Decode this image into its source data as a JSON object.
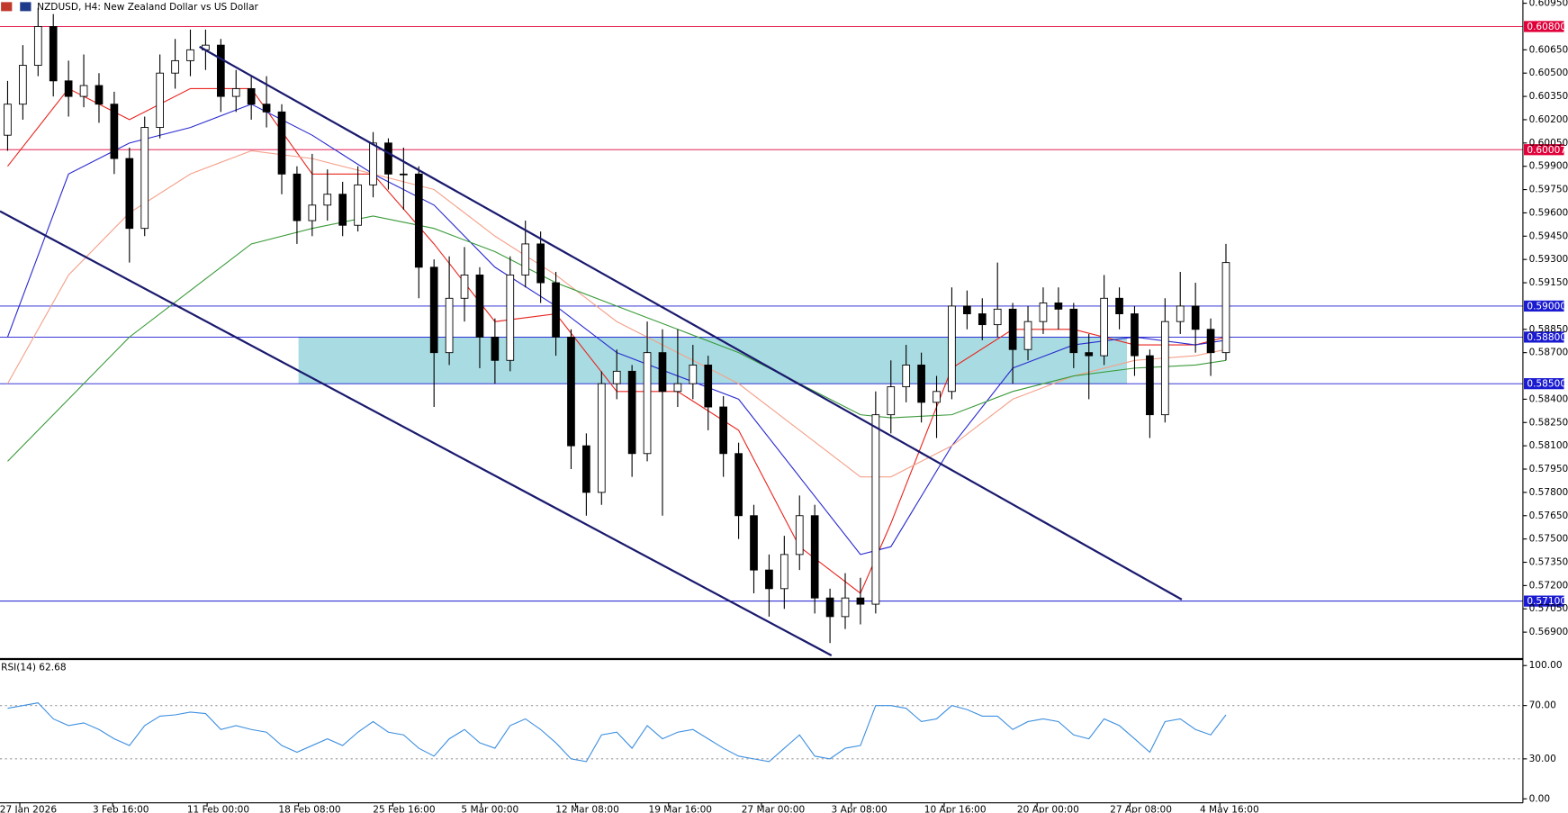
{
  "chart_data": [
    {
      "type": "candlestick",
      "title": "NZDUSD, H4:  New Zealand Dollar vs US Dollar",
      "xlim": [
        -0.5,
        99.5
      ],
      "ylim": [
        0.5673,
        0.6097
      ],
      "yticks": [
        {
          "value": 0.6095,
          "label": "0.60950"
        },
        {
          "value": 0.6065,
          "label": "0.60650"
        },
        {
          "value": 0.605,
          "label": "0.60500"
        },
        {
          "value": 0.6035,
          "label": "0.60350"
        },
        {
          "value": 0.602,
          "label": "0.60200"
        },
        {
          "value": 0.6005,
          "label": "0.60050"
        },
        {
          "value": 0.599,
          "label": "0.59900"
        },
        {
          "value": 0.5975,
          "label": "0.59750"
        },
        {
          "value": 0.596,
          "label": "0.59600"
        },
        {
          "value": 0.5945,
          "label": "0.59450"
        },
        {
          "value": 0.593,
          "label": "0.59300"
        },
        {
          "value": 0.5915,
          "label": "0.59150"
        },
        {
          "value": 0.5885,
          "label": "0.58850"
        },
        {
          "value": 0.587,
          "label": "0.58700"
        },
        {
          "value": 0.584,
          "label": "0.58400"
        },
        {
          "value": 0.5825,
          "label": "0.58250"
        },
        {
          "value": 0.581,
          "label": "0.58100"
        },
        {
          "value": 0.5795,
          "label": "0.57950"
        },
        {
          "value": 0.578,
          "label": "0.57800"
        },
        {
          "value": 0.5765,
          "label": "0.57650"
        },
        {
          "value": 0.575,
          "label": "0.57500"
        },
        {
          "value": 0.5735,
          "label": "0.57350"
        },
        {
          "value": 0.572,
          "label": "0.57200"
        },
        {
          "value": 0.5705,
          "label": "0.57050"
        },
        {
          "value": 0.569,
          "label": "0.56900"
        }
      ],
      "xticks": [
        {
          "value": 0.8,
          "label": "27 Jan 2026"
        },
        {
          "value": 6.9,
          "label": "3 Feb 16:00"
        },
        {
          "value": 13.1,
          "label": "11 Feb 00:00"
        },
        {
          "value": 19.1,
          "label": "18 Feb 08:00"
        },
        {
          "value": 25.3,
          "label": "25 Feb 16:00"
        },
        {
          "value": 31.1,
          "label": "5 Mar 00:00"
        },
        {
          "value": 37.3,
          "label": "12 Mar 08:00"
        },
        {
          "value": 43.4,
          "label": "19 Mar 16:00"
        },
        {
          "value": 49.5,
          "label": "27 Mar 00:00"
        },
        {
          "value": 55.4,
          "label": "3 Apr 08:00"
        },
        {
          "value": 61.5,
          "label": "10 Apr 16:00"
        },
        {
          "value": 67.6,
          "label": "20 Apr 00:00"
        },
        {
          "value": 73.7,
          "label": "27 Apr 08:00"
        },
        {
          "value": 79.6,
          "label": "4 May 16:00"
        }
      ],
      "open": [
        0.601,
        0.603,
        0.6055,
        0.608,
        0.6045,
        0.6035,
        0.6042,
        0.603,
        0.5995,
        0.595,
        0.6015,
        0.605,
        0.6058,
        0.6065,
        0.6068,
        0.6035,
        0.604,
        0.603,
        0.6025,
        0.5985,
        0.5955,
        0.5965,
        0.5972,
        0.5952,
        0.5978,
        0.6005,
        0.5985,
        0.5985,
        0.5925,
        0.587,
        0.5905,
        0.592,
        0.588,
        0.5865,
        0.592,
        0.594,
        0.5915,
        0.588,
        0.581,
        0.578,
        0.585,
        0.5858,
        0.5805,
        0.587,
        0.5845,
        0.585,
        0.5862,
        0.5835,
        0.5805,
        0.5765,
        0.573,
        0.5718,
        0.574,
        0.5765,
        0.5712,
        0.57,
        0.5712,
        0.5708,
        0.583,
        0.5848,
        0.5862,
        0.5838,
        0.5845,
        0.59,
        0.5895,
        0.5888,
        0.5898,
        0.5872,
        0.589,
        0.5902,
        0.5898,
        0.587,
        0.5868,
        0.5905,
        0.5895,
        0.5868,
        0.583,
        0.589,
        0.59,
        0.5885,
        0.587
      ],
      "high": [
        0.6045,
        0.6068,
        0.6092,
        0.6088,
        0.6058,
        0.6062,
        0.605,
        0.6038,
        0.6002,
        0.6022,
        0.6062,
        0.6072,
        0.6078,
        0.6078,
        0.6072,
        0.6052,
        0.6048,
        0.6048,
        0.603,
        0.599,
        0.5998,
        0.5988,
        0.598,
        0.599,
        0.6012,
        0.6008,
        0.6002,
        0.599,
        0.593,
        0.5932,
        0.5938,
        0.5925,
        0.5892,
        0.5932,
        0.5955,
        0.5948,
        0.5922,
        0.5885,
        0.5818,
        0.5858,
        0.5872,
        0.5862,
        0.589,
        0.5885,
        0.5885,
        0.5875,
        0.5868,
        0.5842,
        0.5812,
        0.5772,
        0.574,
        0.5752,
        0.5778,
        0.5772,
        0.5718,
        0.5728,
        0.5725,
        0.5845,
        0.5865,
        0.5875,
        0.587,
        0.5855,
        0.5912,
        0.591,
        0.5905,
        0.5928,
        0.5902,
        0.59,
        0.5912,
        0.5912,
        0.5902,
        0.5882,
        0.592,
        0.5912,
        0.59,
        0.5872,
        0.5905,
        0.5922,
        0.5915,
        0.5892,
        0.594
      ],
      "low": [
        0.6,
        0.602,
        0.6048,
        0.6035,
        0.6022,
        0.6028,
        0.6018,
        0.5985,
        0.5928,
        0.5945,
        0.6008,
        0.604,
        0.6048,
        0.6052,
        0.6025,
        0.6025,
        0.602,
        0.6015,
        0.5972,
        0.594,
        0.5945,
        0.5955,
        0.5945,
        0.5948,
        0.597,
        0.5975,
        0.5962,
        0.5905,
        0.5835,
        0.5862,
        0.589,
        0.586,
        0.585,
        0.5858,
        0.5912,
        0.5902,
        0.5868,
        0.5795,
        0.5765,
        0.5772,
        0.584,
        0.579,
        0.58,
        0.5765,
        0.5835,
        0.584,
        0.582,
        0.579,
        0.575,
        0.5715,
        0.57,
        0.5705,
        0.573,
        0.5702,
        0.5683,
        0.5692,
        0.5695,
        0.5702,
        0.5818,
        0.5838,
        0.5825,
        0.5815,
        0.584,
        0.5885,
        0.5878,
        0.588,
        0.585,
        0.5865,
        0.5882,
        0.5885,
        0.586,
        0.584,
        0.5862,
        0.5885,
        0.5855,
        0.5815,
        0.5825,
        0.5882,
        0.587,
        0.5855,
        0.5865
      ],
      "close": [
        0.603,
        0.6055,
        0.608,
        0.6045,
        0.6035,
        0.6042,
        0.603,
        0.5995,
        0.595,
        0.6015,
        0.605,
        0.6058,
        0.6065,
        0.6068,
        0.6035,
        0.604,
        0.603,
        0.6025,
        0.5985,
        0.5955,
        0.5965,
        0.5972,
        0.5952,
        0.5978,
        0.6005,
        0.5985,
        0.5985,
        0.5925,
        0.587,
        0.5905,
        0.592,
        0.588,
        0.5865,
        0.592,
        0.594,
        0.5915,
        0.588,
        0.581,
        0.578,
        0.585,
        0.5858,
        0.5805,
        0.587,
        0.5845,
        0.585,
        0.5862,
        0.5835,
        0.5805,
        0.5765,
        0.573,
        0.5718,
        0.574,
        0.5765,
        0.5712,
        0.57,
        0.5712,
        0.5708,
        0.583,
        0.5848,
        0.5862,
        0.5838,
        0.5845,
        0.59,
        0.5895,
        0.5888,
        0.5898,
        0.5872,
        0.589,
        0.5902,
        0.5898,
        0.587,
        0.5868,
        0.5905,
        0.5895,
        0.5868,
        0.583,
        0.589,
        0.59,
        0.5885,
        0.587,
        0.5928
      ],
      "series": [
        {
          "color": "#e8251f",
          "x": [
            0,
            4,
            8,
            12,
            16,
            20,
            24,
            28,
            32,
            36,
            40,
            44,
            48,
            52,
            56,
            58,
            62,
            66,
            70,
            74,
            78,
            80
          ],
          "values": [
            0.599,
            0.604,
            0.602,
            0.604,
            0.604,
            0.5985,
            0.5985,
            0.594,
            0.589,
            0.5895,
            0.5845,
            0.5845,
            0.582,
            0.5745,
            0.5715,
            0.576,
            0.586,
            0.5885,
            0.5885,
            0.5875,
            0.5875,
            0.588
          ]
        },
        {
          "color": "#2a2ad0",
          "x": [
            0,
            4,
            8,
            12,
            16,
            20,
            24,
            28,
            32,
            36,
            40,
            44,
            48,
            52,
            56,
            58,
            62,
            66,
            70,
            74,
            78,
            80
          ],
          "values": [
            0.588,
            0.5985,
            0.6005,
            0.6015,
            0.603,
            0.601,
            0.5985,
            0.5965,
            0.5925,
            0.59,
            0.587,
            0.5855,
            0.584,
            0.579,
            0.574,
            0.5745,
            0.581,
            0.586,
            0.5875,
            0.588,
            0.5875,
            0.5878
          ]
        },
        {
          "color": "#f4a08a",
          "x": [
            0,
            4,
            8,
            12,
            16,
            20,
            24,
            28,
            32,
            36,
            40,
            44,
            48,
            52,
            56,
            58,
            62,
            66,
            70,
            74,
            78,
            80
          ],
          "values": [
            0.585,
            0.592,
            0.596,
            0.5985,
            0.6,
            0.5995,
            0.5985,
            0.5975,
            0.5945,
            0.592,
            0.589,
            0.587,
            0.585,
            0.582,
            0.579,
            0.579,
            0.581,
            0.584,
            0.5855,
            0.5865,
            0.5868,
            0.5872
          ]
        },
        {
          "color": "#3a9a3a",
          "x": [
            0,
            4,
            8,
            12,
            16,
            20,
            24,
            28,
            32,
            36,
            40,
            44,
            48,
            52,
            56,
            58,
            62,
            66,
            70,
            74,
            78,
            80
          ],
          "values": [
            0.58,
            0.584,
            0.588,
            0.591,
            0.594,
            0.595,
            0.5958,
            0.595,
            0.5935,
            0.5915,
            0.59,
            0.5885,
            0.587,
            0.585,
            0.583,
            0.5828,
            0.583,
            0.5845,
            0.5855,
            0.586,
            0.5862,
            0.5865
          ]
        }
      ],
      "levels": [
        {
          "value": 0.608,
          "label": "0.60800",
          "color": "#e0003a"
        },
        {
          "value": 0.60007,
          "label": "0.60007",
          "color": "#e0003a"
        },
        {
          "value": 0.59,
          "label": "0.59000",
          "color": "#1a1ad0"
        },
        {
          "value": 0.588,
          "label": "0.58800",
          "color": "#1a1ad0"
        },
        {
          "value": 0.585,
          "label": "0.58500",
          "color": "#1a1ad0"
        },
        {
          "value": 0.571,
          "label": "0.57100",
          "color": "#1a1ad0"
        }
      ],
      "zone": {
        "xlim": [
          19.1,
          73.5
        ],
        "ylim": [
          0.585,
          0.588
        ],
        "color": "#a8dce2"
      },
      "trendlines": [
        {
          "x": [
            12.6,
            77.1
          ],
          "y": [
            0.6067,
            0.5711
          ],
          "color": "#1a1a6e"
        },
        {
          "x": [
            -0.5,
            54.1
          ],
          "y": [
            0.5961,
            0.5675
          ],
          "color": "#1a1a6e"
        }
      ]
    },
    {
      "type": "line",
      "title": "RSI(14) 62.68",
      "xlim": [
        -0.5,
        99.5
      ],
      "ylim": [
        0,
        100
      ],
      "yticks": [
        {
          "value": 100,
          "label": "100.00"
        },
        {
          "value": 70,
          "label": "70.00"
        },
        {
          "value": 30,
          "label": "30.00"
        },
        {
          "value": 0,
          "label": "0.00"
        }
      ],
      "levels": [
        70,
        30
      ],
      "color": "#3d8fe0",
      "values": [
        68,
        70,
        72,
        60,
        55,
        57,
        52,
        45,
        40,
        55,
        62,
        63,
        65,
        64,
        52,
        55,
        52,
        50,
        40,
        35,
        40,
        45,
        40,
        50,
        58,
        50,
        48,
        38,
        32,
        45,
        52,
        42,
        38,
        55,
        60,
        52,
        42,
        30,
        28,
        48,
        50,
        38,
        55,
        45,
        50,
        52,
        45,
        38,
        32,
        30,
        28,
        38,
        48,
        32,
        30,
        38,
        40,
        70,
        70,
        68,
        58,
        60,
        70,
        67,
        62,
        62,
        52,
        58,
        60,
        58,
        48,
        45,
        60,
        55,
        45,
        35,
        58,
        60,
        52,
        48,
        63
      ]
    }
  ]
}
